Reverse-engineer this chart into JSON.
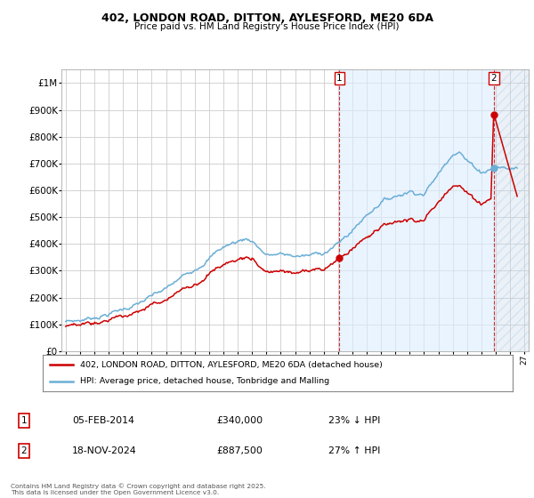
{
  "title1": "402, LONDON ROAD, DITTON, AYLESFORD, ME20 6DA",
  "title2": "Price paid vs. HM Land Registry's House Price Index (HPI)",
  "ylim": [
    0,
    1050000
  ],
  "xlim_start": 1994.7,
  "xlim_end": 2027.3,
  "yticks": [
    0,
    100000,
    200000,
    300000,
    400000,
    500000,
    600000,
    700000,
    800000,
    900000,
    1000000
  ],
  "ytick_labels": [
    "£0",
    "£100K",
    "£200K",
    "£300K",
    "£400K",
    "£500K",
    "£600K",
    "£700K",
    "£800K",
    "£900K",
    "£1M"
  ],
  "hpi_color": "#6baed6",
  "price_color": "#cc0000",
  "transaction1_year": 2014.09,
  "transaction1_price": 340000,
  "transaction2_year": 2024.88,
  "transaction2_price": 887500,
  "legend_line1": "402, LONDON ROAD, DITTON, AYLESFORD, ME20 6DA (detached house)",
  "legend_line2": "HPI: Average price, detached house, Tonbridge and Malling",
  "annotation1_date": "05-FEB-2014",
  "annotation1_price": "£340,000",
  "annotation1_hpi": "23% ↓ HPI",
  "annotation2_date": "18-NOV-2024",
  "annotation2_price": "£887,500",
  "annotation2_hpi": "27% ↑ HPI",
  "footer": "Contains HM Land Registry data © Crown copyright and database right 2025.\nThis data is licensed under the Open Government Licence v3.0.",
  "bg_color": "#ffffff",
  "grid_color": "#cccccc",
  "shade_color": "#ddeeff",
  "hatch_color": "#c8d8e8"
}
